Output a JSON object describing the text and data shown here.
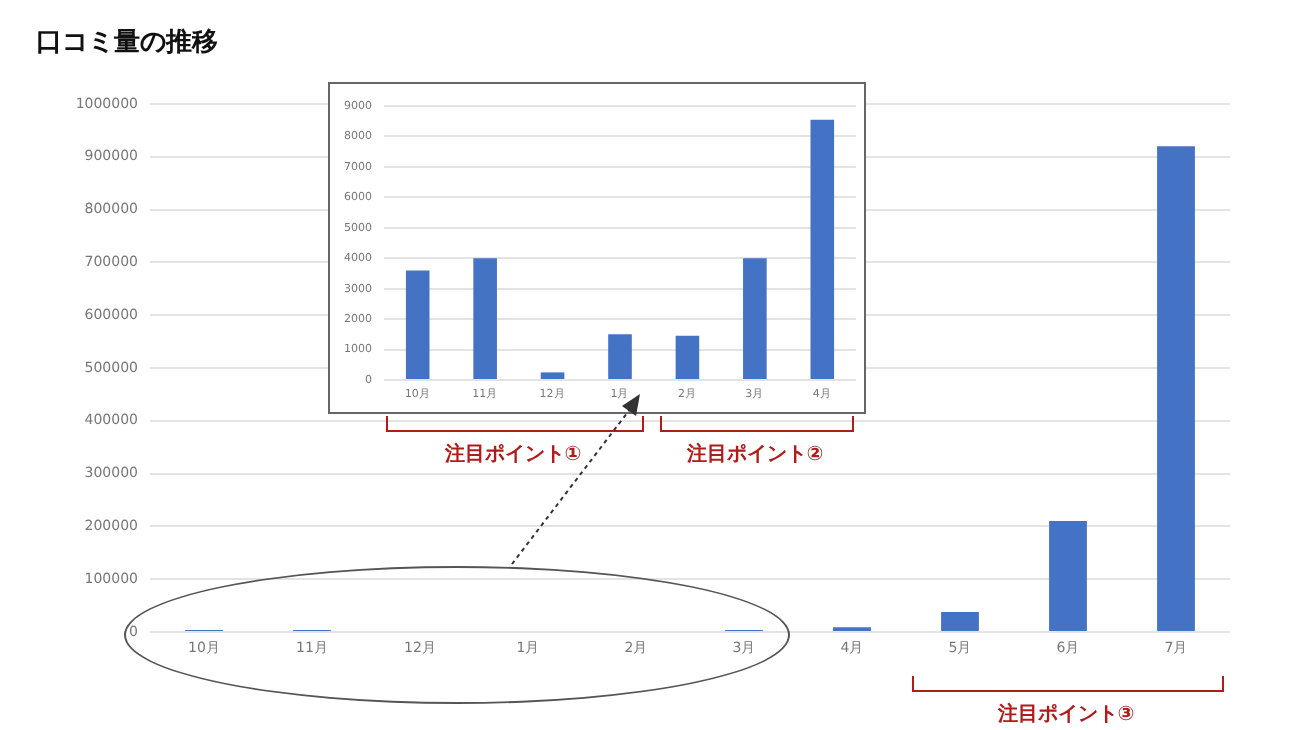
{
  "chart_data": [
    {
      "type": "bar",
      "title": "口コミ量の推移",
      "categories": [
        "10月",
        "11月",
        "12月",
        "1月",
        "2月",
        "3月",
        "4月",
        "5月",
        "6月",
        "7月"
      ],
      "values": [
        4000,
        4000,
        null,
        null,
        null,
        4000,
        9000,
        38000,
        210000,
        920000
      ],
      "color": "#4472c4",
      "ylim": [
        0,
        1000000
      ],
      "yticks": [
        0,
        100000,
        200000,
        300000,
        400000,
        500000,
        600000,
        700000,
        800000,
        900000,
        1000000
      ],
      "grid": "y",
      "legend": false,
      "annotations": [
        "注目ポイント③"
      ]
    },
    {
      "type": "bar",
      "categories": [
        "10月",
        "11月",
        "12月",
        "1月",
        "2月",
        "3月",
        "4月"
      ],
      "values": [
        3600,
        4000,
        250,
        1500,
        1450,
        4000,
        8550
      ],
      "color": "#4472c4",
      "ylim": [
        0,
        9000
      ],
      "yticks": [
        0,
        1000,
        2000,
        3000,
        4000,
        5000,
        6000,
        7000,
        8000,
        9000
      ],
      "grid": "y",
      "legend": false,
      "annotations": [
        "注目ポイント①",
        "注目ポイント②"
      ]
    }
  ]
}
